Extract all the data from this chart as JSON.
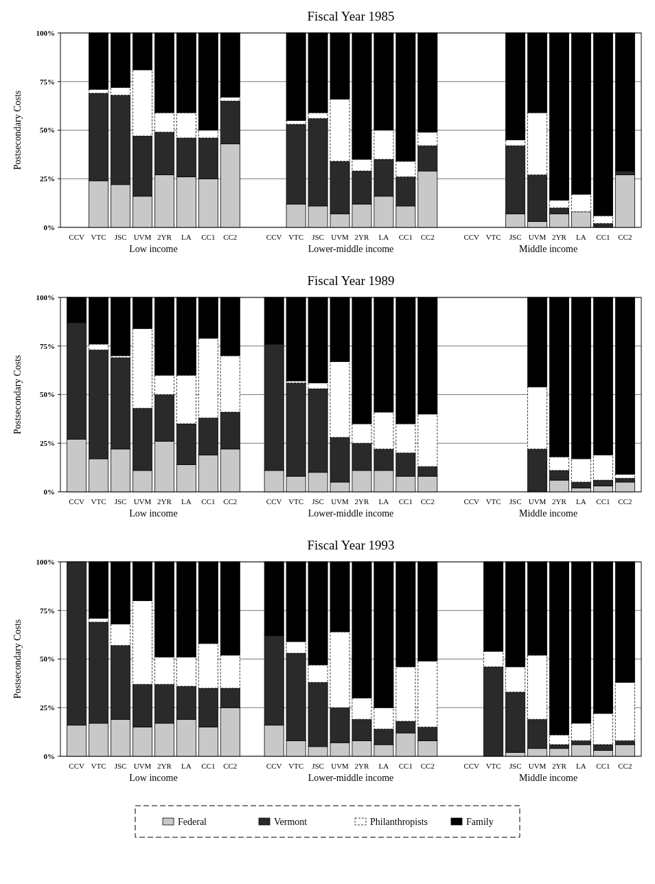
{
  "chart_data": [
    {
      "type": "bar",
      "stacked": true,
      "title": "Fiscal Year 1985",
      "ylabel": "Postsecondary Costs",
      "ylim": [
        0,
        100
      ],
      "yticks": [
        {
          "value": 0,
          "label": "0%"
        },
        {
          "value": 25,
          "label": "25%"
        },
        {
          "value": 50,
          "label": "50%"
        },
        {
          "value": 75,
          "label": "75%"
        },
        {
          "value": 100,
          "label": "100%"
        }
      ],
      "grid": "y",
      "legend": "bottom",
      "categories": [
        "CCV",
        "VTC",
        "JSC",
        "UVM",
        "2YR",
        "LA",
        "CC1",
        "CC2",
        null,
        "CCV",
        "VTC",
        "JSC",
        "UVM",
        "2YR",
        "LA",
        "CC1",
        "CC2",
        null,
        "CCV",
        "VTC",
        "JSC",
        "UVM",
        "2YR",
        "LA",
        "CC1",
        "CC2"
      ],
      "annotations": [
        "Low income",
        "Lower-middle income",
        "Middle income"
      ],
      "series": [
        {
          "name": "Federal",
          "color": "#c8c8c8",
          "values": [
            null,
            24,
            22,
            16,
            27,
            26,
            25,
            43,
            null,
            null,
            12,
            11,
            7,
            12,
            16,
            11,
            29,
            null,
            null,
            null,
            7,
            3,
            7,
            8,
            0,
            27
          ]
        },
        {
          "name": "Vermont",
          "color": "#2a2a2a",
          "values": [
            null,
            45,
            46,
            31,
            22,
            20,
            21,
            22,
            null,
            null,
            41,
            45,
            27,
            17,
            19,
            15,
            13,
            null,
            null,
            null,
            35,
            24,
            3,
            0,
            2,
            2
          ]
        },
        {
          "name": "Philanthropists",
          "color": "#ffffff",
          "values": [
            null,
            2,
            4,
            34,
            10,
            13,
            4,
            2,
            null,
            null,
            2,
            3,
            32,
            6,
            15,
            8,
            7,
            null,
            null,
            null,
            3,
            32,
            4,
            9,
            4,
            0
          ]
        },
        {
          "name": "Family",
          "color": "#000000",
          "values": [
            null,
            29,
            28,
            19,
            41,
            41,
            50,
            33,
            null,
            null,
            45,
            41,
            34,
            65,
            50,
            66,
            51,
            null,
            null,
            null,
            55,
            41,
            86,
            83,
            94,
            71
          ]
        }
      ]
    },
    {
      "type": "bar",
      "stacked": true,
      "title": "Fiscal Year 1989",
      "ylabel": "Postsecondary Costs",
      "ylim": [
        0,
        100
      ],
      "yticks": [
        {
          "value": 0,
          "label": "0%"
        },
        {
          "value": 25,
          "label": "25%"
        },
        {
          "value": 50,
          "label": "50%"
        },
        {
          "value": 75,
          "label": "75%"
        },
        {
          "value": 100,
          "label": "100%"
        }
      ],
      "grid": "y",
      "categories": [
        "CCV",
        "VTC",
        "JSC",
        "UVM",
        "2YR",
        "LA",
        "CC1",
        "CC2",
        null,
        "CCV",
        "VTC",
        "JSC",
        "UVM",
        "2YR",
        "LA",
        "CC1",
        "CC2",
        null,
        "CCV",
        "VTC",
        "JSC",
        "UVM",
        "2YR",
        "LA",
        "CC1",
        "CC2"
      ],
      "annotations": [
        "Low income",
        "Lower-middle income",
        "Middle income"
      ],
      "series": [
        {
          "color": "#c8c8c8",
          "values": [
            27,
            17,
            22,
            11,
            26,
            14,
            19,
            22,
            null,
            11,
            8,
            10,
            5,
            11,
            11,
            8,
            8,
            null,
            null,
            null,
            null,
            0,
            6,
            2,
            3,
            5
          ]
        },
        {
          "color": "#2a2a2a",
          "values": [
            60,
            56,
            47,
            32,
            24,
            21,
            19,
            19,
            null,
            65,
            48,
            43,
            23,
            14,
            11,
            12,
            5,
            null,
            null,
            null,
            null,
            22,
            5,
            3,
            3,
            2
          ]
        },
        {
          "color": "#ffffff",
          "values": [
            0,
            3,
            1,
            41,
            10,
            25,
            41,
            29,
            null,
            0,
            1,
            3,
            39,
            10,
            19,
            15,
            27,
            null,
            null,
            null,
            null,
            32,
            7,
            12,
            13,
            2
          ]
        },
        {
          "color": "#000000",
          "values": [
            13,
            24,
            30,
            16,
            40,
            40,
            21,
            30,
            null,
            24,
            43,
            44,
            33,
            65,
            59,
            65,
            60,
            null,
            null,
            null,
            null,
            46,
            82,
            83,
            81,
            91
          ]
        }
      ]
    },
    {
      "type": "bar",
      "stacked": true,
      "title": "Fiscal Year 1993",
      "ylabel": "Postsecondary Costs",
      "ylim": [
        0,
        100
      ],
      "yticks": [
        {
          "value": 0,
          "label": "0%"
        },
        {
          "value": 25,
          "label": "25%"
        },
        {
          "value": 50,
          "label": "50%"
        },
        {
          "value": 75,
          "label": "75%"
        },
        {
          "value": 100,
          "label": "100%"
        }
      ],
      "grid": "y",
      "categories": [
        "CCV",
        "VTC",
        "JSC",
        "UVM",
        "2YR",
        "LA",
        "CC1",
        "CC2",
        null,
        "CCV",
        "VTC",
        "JSC",
        "UVM",
        "2YR",
        "LA",
        "CC1",
        "CC2",
        null,
        "CCV",
        "VTC",
        "JSC",
        "UVM",
        "2YR",
        "LA",
        "CC1",
        "CC2"
      ],
      "annotations": [
        "Low income",
        "Lower-middle income",
        "Middle income"
      ],
      "series": [
        {
          "color": "#c8c8c8",
          "values": [
            16,
            17,
            19,
            15,
            17,
            19,
            15,
            25,
            null,
            16,
            8,
            5,
            7,
            8,
            6,
            12,
            8,
            null,
            null,
            0,
            2,
            4,
            4,
            6,
            3,
            6
          ]
        },
        {
          "color": "#2a2a2a",
          "values": [
            84,
            52,
            38,
            22,
            20,
            17,
            20,
            10,
            null,
            46,
            45,
            33,
            18,
            11,
            8,
            6,
            7,
            null,
            null,
            46,
            31,
            15,
            2,
            2,
            3,
            2
          ]
        },
        {
          "color": "#ffffff",
          "values": [
            0,
            2,
            11,
            43,
            14,
            15,
            23,
            17,
            null,
            0,
            6,
            9,
            39,
            11,
            11,
            28,
            34,
            null,
            null,
            8,
            13,
            33,
            5,
            9,
            16,
            30
          ]
        },
        {
          "color": "#000000",
          "values": [
            0,
            29,
            32,
            20,
            49,
            49,
            42,
            48,
            null,
            38,
            41,
            53,
            36,
            70,
            75,
            54,
            51,
            null,
            null,
            46,
            54,
            48,
            89,
            83,
            78,
            62
          ]
        }
      ]
    }
  ]
}
